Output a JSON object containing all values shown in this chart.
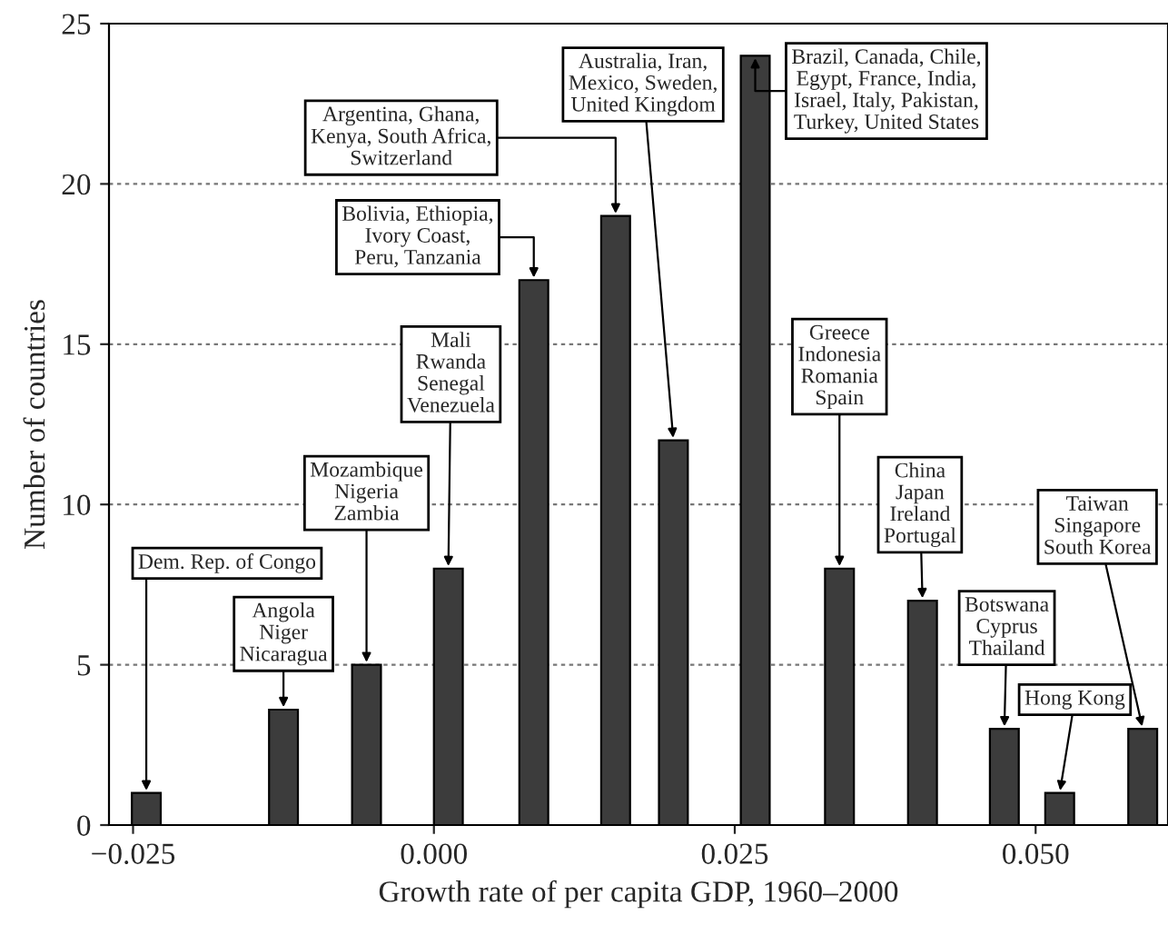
{
  "chart_data": {
    "type": "bar",
    "xlabel": "Growth rate of per capita GDP, 1960–2000",
    "ylabel": "Number of countries",
    "x": [
      -0.0239,
      -0.0125,
      -0.0056,
      0.0012,
      0.0083,
      0.0151,
      0.0199,
      0.0267,
      0.0337,
      0.0406,
      0.0474,
      0.052,
      0.0589
    ],
    "values": [
      1,
      3.6,
      5,
      8,
      17,
      19,
      12,
      24,
      8,
      7,
      3,
      1,
      3
    ],
    "color": "#3c3c3c",
    "xlim": [
      -0.027,
      0.061
    ],
    "xticks": [
      {
        "value": -0.025,
        "label": "−0.025"
      },
      {
        "value": 0,
        "label": "0.000"
      },
      {
        "value": 0.025,
        "label": "0.025"
      },
      {
        "value": 0.05,
        "label": "0.050"
      }
    ],
    "ylim": [
      0,
      25
    ],
    "yticks": [
      0,
      5,
      10,
      15,
      20,
      25
    ],
    "grid": "y",
    "annotations": [
      {
        "text": "Dem. Rep. of Congo",
        "x": -0.0239,
        "y": 1
      },
      {
        "text": "Angola\nNiger\nNicaragua",
        "x": -0.0125,
        "y": 3.6
      },
      {
        "text": "Mozambique\nNigeria\nZambia",
        "x": -0.0056,
        "y": 5
      },
      {
        "text": "Mali\nRwanda\nSenegal\nVenezuela",
        "x": 0.0012,
        "y": 8
      },
      {
        "text": "Bolivia, Ethiopia,\nIvory Coast,\nPeru, Tanzania",
        "x": 0.0083,
        "y": 17
      },
      {
        "text": "Argentina, Ghana,\nKenya, South Africa,\nSwitzerland",
        "x": 0.0151,
        "y": 19
      },
      {
        "text": "Australia, Iran,\nMexico, Sweden,\nUnited Kingdom",
        "x": 0.0199,
        "y": 12
      },
      {
        "text": "Brazil, Canada, Chile,\nEgypt, France, India,\nIsrael, Italy, Pakistan,\nTurkey, United States",
        "x": 0.0267,
        "y": 24
      },
      {
        "text": "Greece\nIndonesia\nRomania\nSpain",
        "x": 0.0337,
        "y": 8
      },
      {
        "text": "China\nJapan\nIreland\nPortugal",
        "x": 0.0406,
        "y": 7
      },
      {
        "text": "Botswana\nCyprus\nThailand",
        "x": 0.0474,
        "y": 3
      },
      {
        "text": "Hong Kong",
        "x": 0.052,
        "y": 1
      },
      {
        "text": "Taiwan\nSingapore\nSouth Korea",
        "x": 0.0589,
        "y": 3
      }
    ]
  }
}
